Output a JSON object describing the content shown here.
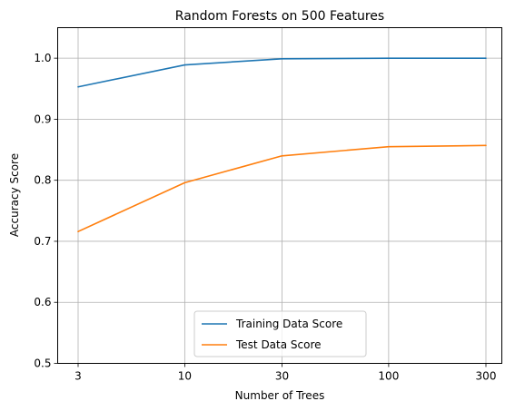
{
  "chart_data": {
    "type": "line",
    "title": "Random Forests on 500 Features",
    "xlabel": "Number of Trees",
    "ylabel": "Accuracy Score",
    "x_scale": "log",
    "x": [
      3,
      10,
      30,
      100,
      300
    ],
    "x_tick_labels": [
      "3",
      "10",
      "30",
      "100",
      "300"
    ],
    "ylim": [
      0.5,
      1.05
    ],
    "y_ticks": [
      0.5,
      0.6,
      0.7,
      0.8,
      0.9,
      1.0
    ],
    "y_tick_labels": [
      "0.5",
      "0.6",
      "0.7",
      "0.8",
      "0.9",
      "1.0"
    ],
    "grid": true,
    "legend_position": "bottom-center",
    "series": [
      {
        "name": "Training Data Score",
        "color": "#1f77b4",
        "values": [
          0.953,
          0.989,
          0.999,
          1.0,
          1.0
        ]
      },
      {
        "name": "Test Data Score",
        "color": "#ff7f0e",
        "values": [
          0.716,
          0.796,
          0.84,
          0.855,
          0.857
        ]
      }
    ]
  }
}
